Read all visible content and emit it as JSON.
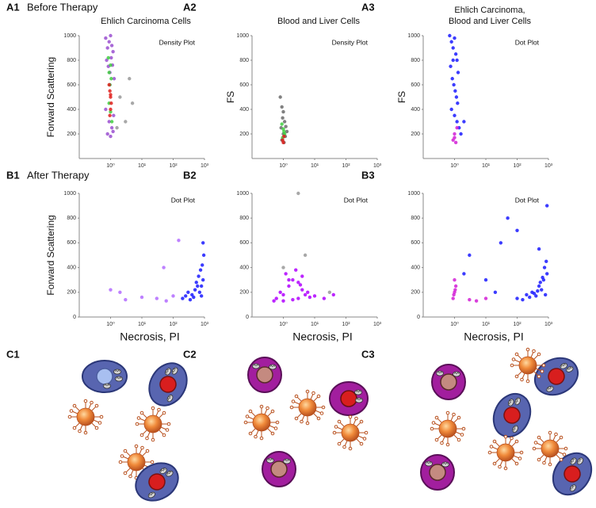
{
  "chart_data": [
    {
      "type": "scatter",
      "panel": "A1",
      "heading": "Before Therapy",
      "title": [
        "Ehlich Carcinoma Cells"
      ],
      "annotation": "Density Plot",
      "ylabel": "Forward Scattering",
      "log_x": true,
      "xlim": [
        0.1,
        1000
      ],
      "ylim": [
        0,
        1000
      ],
      "xticks": [
        {
          "value": 1,
          "label": "10⁰"
        },
        {
          "value": 10,
          "label": "10¹"
        },
        {
          "value": 100,
          "label": "10²"
        },
        {
          "value": 1000,
          "label": "10³"
        }
      ],
      "yticks": [
        200,
        400,
        600,
        800,
        1000
      ],
      "series": [
        {
          "color": "#999999",
          "x": [
            2,
            3,
            5,
            1.6,
            4
          ],
          "y": [
            500,
            300,
            450,
            250,
            650
          ]
        },
        {
          "color": "#9a4fd0",
          "x": [
            0.7,
            0.8,
            0.9,
            1.0,
            1.1,
            1.2,
            0.75,
            0.85,
            0.95,
            1.05,
            1.15,
            1.3,
            0.7,
            0.9,
            1.1,
            1.25,
            0.8,
            1.0,
            1.2,
            0.95
          ],
          "y": [
            980,
            900,
            950,
            1000,
            920,
            870,
            800,
            750,
            700,
            820,
            760,
            650,
            400,
            300,
            250,
            350,
            200,
            180,
            220,
            600
          ]
        },
        {
          "color": "#3fcf3f",
          "x": [
            0.85,
            0.9,
            1.0,
            1.05,
            0.95,
            0.9,
            1.0,
            1.1
          ],
          "y": [
            820,
            700,
            760,
            650,
            600,
            450,
            380,
            300
          ]
        },
        {
          "color": "#e0201c",
          "x": [
            0.9,
            0.95,
            1.0,
            1.05,
            1.0,
            0.95,
            1.0
          ],
          "y": [
            600,
            550,
            500,
            450,
            400,
            350,
            520
          ]
        }
      ]
    },
    {
      "type": "scatter",
      "panel": "A2",
      "title": [
        "Blood and Liver Cells"
      ],
      "annotation": "Density Plot",
      "ylabel": "FS",
      "log_x": true,
      "xlim": [
        0.1,
        1000
      ],
      "ylim": [
        0,
        1000
      ],
      "xticks": [
        {
          "value": 1,
          "label": "10⁰"
        },
        {
          "value": 10,
          "label": "10¹"
        },
        {
          "value": 100,
          "label": "10²"
        },
        {
          "value": 1000,
          "label": "10³"
        }
      ],
      "yticks": [
        200,
        400,
        600,
        800,
        1000
      ],
      "series": [
        {
          "color": "#6b6b6b",
          "x": [
            0.8,
            0.9,
            1.0,
            1.1,
            1.2,
            0.85,
            1.0,
            1.15,
            0.9,
            1.05,
            1.3,
            0.95
          ],
          "y": [
            500,
            420,
            380,
            300,
            260,
            250,
            200,
            180,
            150,
            130,
            220,
            330
          ]
        },
        {
          "color": "#3fcf3f",
          "x": [
            0.9,
            1.0,
            1.1,
            0.95,
            1.05
          ],
          "y": [
            280,
            240,
            200,
            170,
            220
          ]
        },
        {
          "color": "#e0201c",
          "x": [
            0.95,
            1.0,
            1.05
          ],
          "y": [
            150,
            130,
            180
          ]
        }
      ]
    },
    {
      "type": "scatter",
      "panel": "A3",
      "title": [
        "Ehlich Carcinoma,",
        "Blood and Liver Cells"
      ],
      "annotation": "Dot Plot",
      "ylabel": "FS",
      "log_x": true,
      "xlim": [
        0.1,
        1000
      ],
      "ylim": [
        0,
        1000
      ],
      "xticks": [
        {
          "value": 1,
          "label": "10⁰"
        },
        {
          "value": 10,
          "label": "10¹"
        },
        {
          "value": 100,
          "label": "10²"
        },
        {
          "value": 1000,
          "label": "10³"
        }
      ],
      "yticks": [
        200,
        400,
        600,
        800,
        1000
      ],
      "series": [
        {
          "color": "#1a1aff",
          "x": [
            0.7,
            0.8,
            0.9,
            1.0,
            1.1,
            1.2,
            1.3,
            0.75,
            0.85,
            0.95,
            1.05,
            1.15,
            1.25,
            0.8,
            1.0,
            1.2,
            1.4,
            1.6,
            2,
            0.9
          ],
          "y": [
            1000,
            950,
            900,
            980,
            850,
            800,
            700,
            750,
            650,
            600,
            550,
            500,
            450,
            400,
            350,
            300,
            250,
            200,
            300,
            800
          ]
        },
        {
          "color": "#d21fd6",
          "x": [
            0.9,
            1.0,
            1.1,
            1.2,
            1.0
          ],
          "y": [
            150,
            200,
            130,
            250,
            170
          ]
        }
      ]
    },
    {
      "type": "scatter",
      "panel": "B1",
      "heading": "After Therapy",
      "annotation": "Dot Plot",
      "ylabel": "Forward Scattering",
      "xlabel": "Necrosis, PI",
      "log_x": true,
      "xlim": [
        0.1,
        1000
      ],
      "ylim": [
        0,
        1000
      ],
      "xticks": [
        {
          "value": 1,
          "label": "10⁰"
        },
        {
          "value": 10,
          "label": "10¹"
        },
        {
          "value": 100,
          "label": "10²"
        },
        {
          "value": 1000,
          "label": "10³"
        }
      ],
      "yticks": [
        0,
        200,
        400,
        600,
        800,
        1000
      ],
      "series": [
        {
          "color": "#b36bff",
          "x": [
            1,
            3,
            10,
            30,
            60,
            100,
            150,
            2,
            50
          ],
          "y": [
            220,
            140,
            160,
            150,
            130,
            170,
            620,
            200,
            400
          ]
        },
        {
          "color": "#1a1aff",
          "x": [
            200,
            250,
            300,
            400,
            500,
            600,
            700,
            800,
            900,
            350,
            450,
            550,
            650,
            750,
            850,
            950,
            900,
            800
          ],
          "y": [
            150,
            170,
            200,
            180,
            220,
            250,
            200,
            170,
            300,
            140,
            160,
            280,
            330,
            380,
            420,
            500,
            600,
            250
          ]
        }
      ]
    },
    {
      "type": "scatter",
      "panel": "B2",
      "annotation": "Dot Plot",
      "xlabel": "Necrosis, PI",
      "log_x": true,
      "xlim": [
        0.1,
        1000
      ],
      "ylim": [
        0,
        1000
      ],
      "xticks": [
        {
          "value": 1,
          "label": "10⁰"
        },
        {
          "value": 10,
          "label": "10¹"
        },
        {
          "value": 100,
          "label": "10²"
        },
        {
          "value": 1000,
          "label": "10³"
        }
      ],
      "yticks": [
        0,
        200,
        400,
        600,
        800,
        1000
      ],
      "series": [
        {
          "color": "#999999",
          "x": [
            1,
            5,
            30,
            3
          ],
          "y": [
            400,
            500,
            200,
            1000
          ]
        },
        {
          "color": "#b000ff",
          "x": [
            0.6,
            0.8,
            1,
            1.5,
            2,
            3,
            4,
            5,
            7,
            1.2,
            2.5,
            3.5,
            1,
            2,
            3,
            6,
            10,
            20,
            40,
            0.5,
            1.5,
            4
          ],
          "y": [
            150,
            200,
            180,
            250,
            300,
            280,
            220,
            180,
            160,
            350,
            380,
            260,
            130,
            140,
            150,
            200,
            170,
            150,
            180,
            130,
            300,
            330
          ]
        }
      ]
    },
    {
      "type": "scatter",
      "panel": "B3",
      "annotation": "Dot Plot",
      "xlabel": "Necrosis, PI",
      "log_x": true,
      "xlim": [
        0.1,
        1000
      ],
      "ylim": [
        0,
        1000
      ],
      "xticks": [
        {
          "value": 1,
          "label": "10⁰"
        },
        {
          "value": 10,
          "label": "10¹"
        },
        {
          "value": 100,
          "label": "10²"
        },
        {
          "value": 1000,
          "label": "10³"
        }
      ],
      "yticks": [
        0,
        200,
        400,
        600,
        800,
        1000
      ],
      "series": [
        {
          "color": "#1a1aff",
          "x": [
            100,
            200,
            300,
            400,
            500,
            600,
            700,
            800,
            900,
            150,
            250,
            350,
            450,
            550,
            650,
            750,
            850,
            30,
            10,
            3,
            50,
            100,
            500,
            900,
            2,
            20
          ],
          "y": [
            150,
            180,
            200,
            170,
            250,
            220,
            300,
            180,
            350,
            140,
            160,
            190,
            210,
            280,
            320,
            400,
            450,
            600,
            300,
            500,
            800,
            700,
            550,
            900,
            350,
            200
          ]
        },
        {
          "color": "#d21fd6",
          "x": [
            0.9,
            1,
            1.1,
            1.0,
            0.95,
            1.05,
            3,
            5,
            10
          ],
          "y": [
            150,
            200,
            250,
            300,
            180,
            220,
            140,
            130,
            150
          ]
        }
      ]
    }
  ],
  "diagram": {
    "panels": [
      "C1",
      "C2",
      "C3"
    ]
  }
}
